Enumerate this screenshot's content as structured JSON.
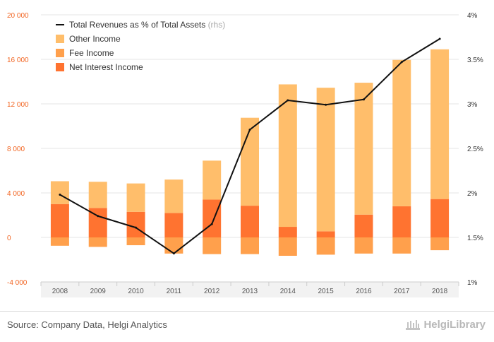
{
  "chart_data": {
    "type": "bar",
    "categories": [
      "2008",
      "2009",
      "2010",
      "2011",
      "2012",
      "2013",
      "2014",
      "2015",
      "2016",
      "2017",
      "2018"
    ],
    "series": [
      {
        "name": "Net Interest Income",
        "color": "#ff7330",
        "values": [
          3000,
          2650,
          2300,
          2200,
          3400,
          2850,
          950,
          550,
          2050,
          2800,
          3450
        ]
      },
      {
        "name": "Fee Income",
        "color": "#ffa04c",
        "values": [
          -750,
          -850,
          -700,
          -1450,
          -1500,
          -1500,
          -1650,
          -1550,
          -1450,
          -1450,
          -1150
        ]
      },
      {
        "name": "Other Income",
        "color": "#ffbe6b",
        "values": [
          2050,
          2350,
          2550,
          3000,
          3500,
          7900,
          12800,
          12900,
          11850,
          13150,
          13450
        ]
      }
    ],
    "line": {
      "name": "Total Revenues as % of Total Assets",
      "axis_note": "(rhs)",
      "color": "#111111",
      "values": [
        1.98,
        1.74,
        1.61,
        1.32,
        1.65,
        2.71,
        3.04,
        2.99,
        3.05,
        3.47,
        3.73
      ]
    },
    "ylim_left": [
      -4000,
      20000
    ],
    "ylim_right": [
      1,
      4
    ],
    "yticks_left": [
      {
        "v": -4000,
        "label": "-4 000"
      },
      {
        "v": 0,
        "label": "0"
      },
      {
        "v": 4000,
        "label": "4 000"
      },
      {
        "v": 8000,
        "label": "8 000"
      },
      {
        "v": 12000,
        "label": "12 000"
      },
      {
        "v": 16000,
        "label": "16 000"
      },
      {
        "v": 20000,
        "label": "20 000"
      }
    ],
    "yticks_right": [
      {
        "v": 1,
        "label": "1%"
      },
      {
        "v": 1.5,
        "label": "1.5%"
      },
      {
        "v": 2,
        "label": "2%"
      },
      {
        "v": 2.5,
        "label": "2.5%"
      },
      {
        "v": 3,
        "label": "3%"
      },
      {
        "v": 3.5,
        "label": "3.5%"
      },
      {
        "v": 4,
        "label": "4%"
      }
    ],
    "legend_position": "top-left"
  },
  "footer": {
    "source": "Source: Company Data, Helgi Analytics",
    "logo_text": "HelgiLibrary"
  }
}
